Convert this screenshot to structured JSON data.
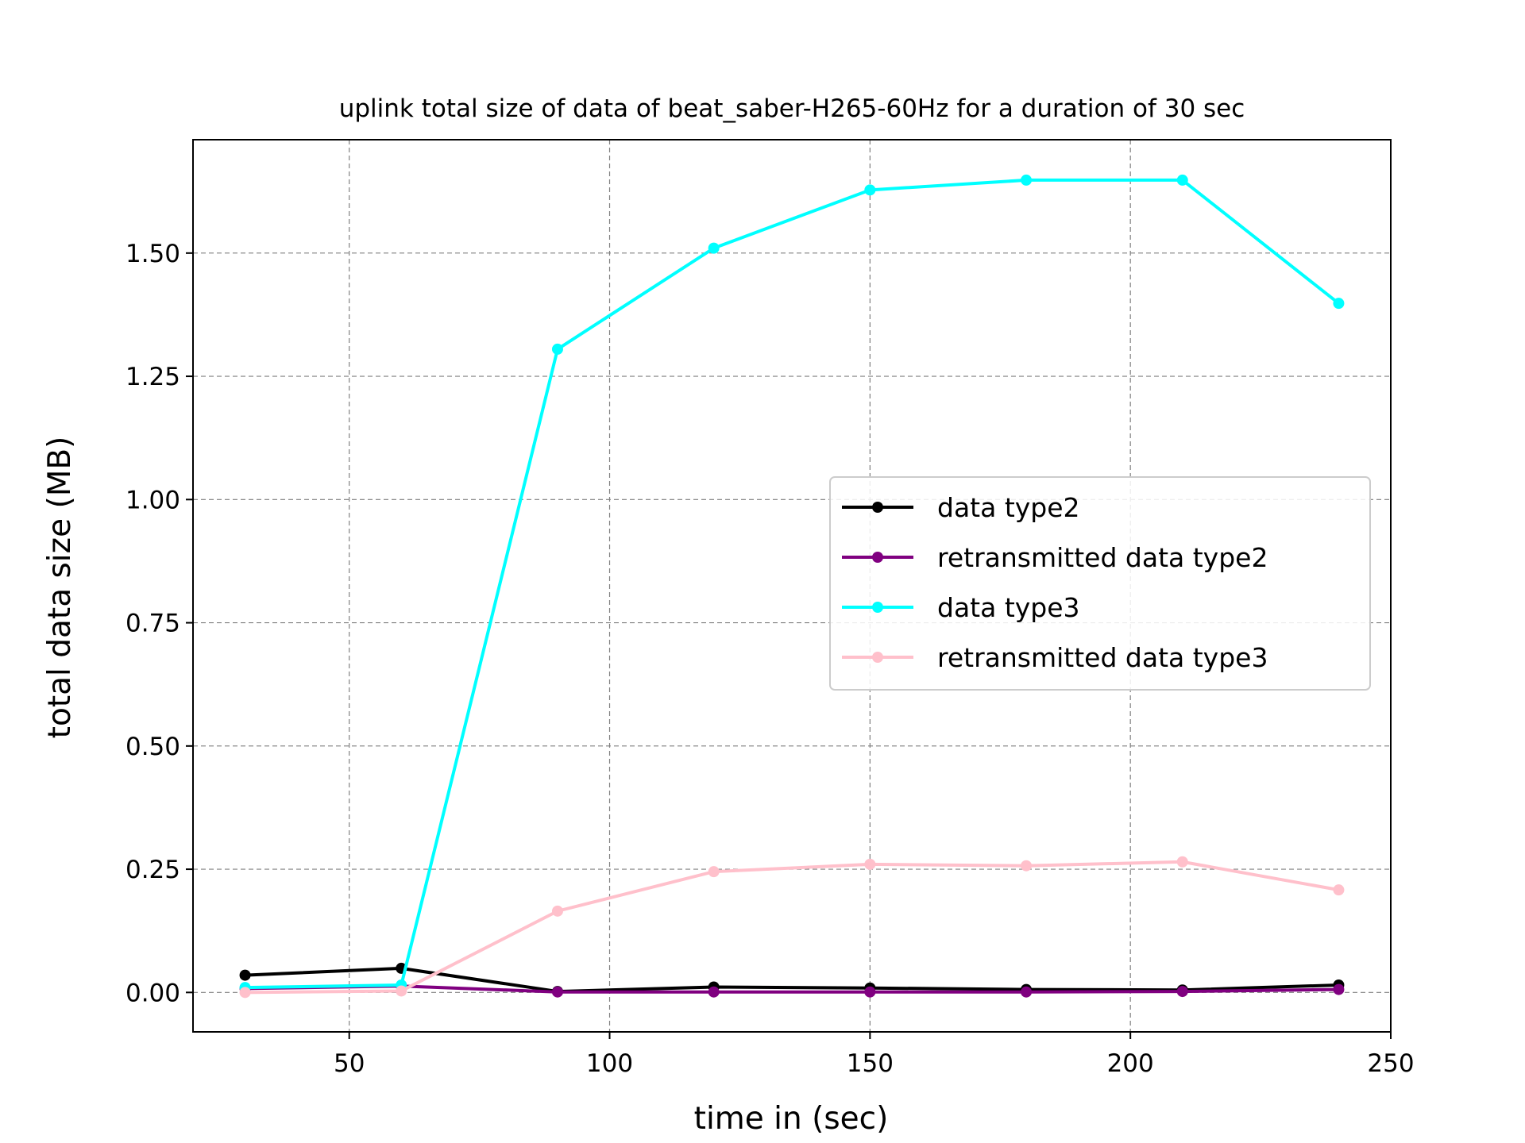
{
  "chart_data": {
    "type": "line",
    "title": "uplink total size of data of beat_saber-H265-60Hz for a duration of 30 sec",
    "xlabel": "time in (sec)",
    "ylabel": "total data size (MB)",
    "xlim": [
      20,
      250
    ],
    "ylim": [
      -0.08,
      1.73
    ],
    "xticks": [
      50,
      100,
      150,
      200,
      250
    ],
    "yticks": [
      0.0,
      0.25,
      0.5,
      0.75,
      1.0,
      1.25,
      1.5
    ],
    "ytick_labels": [
      "0.00",
      "0.25",
      "0.50",
      "0.75",
      "1.00",
      "1.25",
      "1.50"
    ],
    "grid": true,
    "legend_position": "center-right",
    "x": [
      30,
      60,
      90,
      120,
      150,
      180,
      210,
      240
    ],
    "series": [
      {
        "name": "data type2",
        "color": "#000000",
        "values": [
          0.035,
          0.049,
          0.002,
          0.011,
          0.009,
          0.006,
          0.005,
          0.015
        ]
      },
      {
        "name": "retransmitted data type2",
        "color": "#800080",
        "values": [
          0.008,
          0.013,
          0.001,
          0.001,
          0.001,
          0.001,
          0.002,
          0.006
        ]
      },
      {
        "name": "data type3",
        "color": "#00ffff",
        "values": [
          0.01,
          0.015,
          1.305,
          1.51,
          1.628,
          1.648,
          1.648,
          1.398
        ]
      },
      {
        "name": "retransmitted data type3",
        "color": "#ffc0cb",
        "values": [
          0.0,
          0.003,
          0.165,
          0.245,
          0.26,
          0.257,
          0.265,
          0.208
        ]
      }
    ]
  }
}
